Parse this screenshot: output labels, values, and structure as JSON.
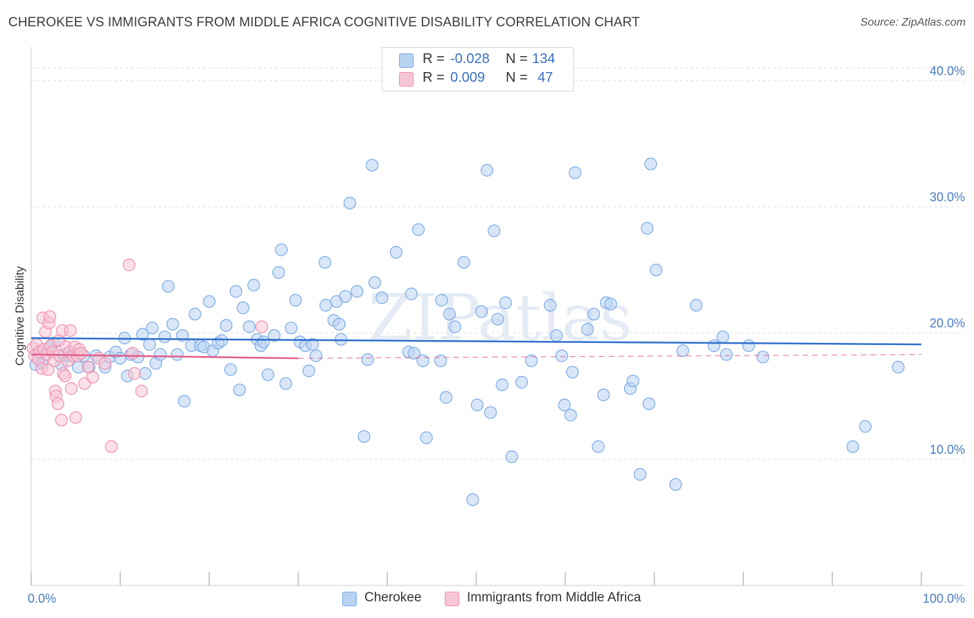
{
  "title": "CHEROKEE VS IMMIGRANTS FROM MIDDLE AFRICA COGNITIVE DISABILITY CORRELATION CHART",
  "source": "Source: ZipAtlas.com",
  "watermark": "ZIPatlas",
  "legend_top": {
    "rows": [
      {
        "r_label": "R =",
        "r_value": "-0.028",
        "n_label": "N =",
        "n_value": "134"
      },
      {
        "r_label": "R =",
        "r_value": "0.009",
        "n_label": "N =",
        "n_value": "47"
      }
    ]
  },
  "colors": {
    "blue": "#7aaae6",
    "blue_fill": "#b8d2f2",
    "blue_line": "#2f6fcc",
    "pink": "#f08fb0",
    "pink_fill": "#f7c6d6",
    "pink_line": "#e0608c",
    "grid": "#dddddd",
    "tick_text": "#4a7cc4"
  },
  "chart_data": {
    "type": "scatter",
    "title": "CHEROKEE VS IMMIGRANTS FROM MIDDLE AFRICA COGNITIVE DISABILITY CORRELATION CHART",
    "xlabel": "",
    "ylabel": "Cognitive Disability",
    "xlim": [
      0,
      100
    ],
    "ylim": [
      0,
      42
    ],
    "x_ticks": [
      {
        "value": 0,
        "label": "0.0%"
      },
      {
        "value": 100,
        "label": "100.0%"
      }
    ],
    "y_ticks": [
      {
        "value": 10,
        "label": "10.0%"
      },
      {
        "value": 20,
        "label": "20.0%"
      },
      {
        "value": 30,
        "label": "30.0%"
      },
      {
        "value": 40,
        "label": "40.0%"
      }
    ],
    "grid": "horizontal dashed",
    "legend": "bottom",
    "series": [
      {
        "name": "Cherokee",
        "color": "#7aaae6",
        "trend": {
          "x": [
            0,
            100
          ],
          "y": [
            19.6,
            19.1
          ],
          "style": "solid"
        },
        "points": [
          [
            0.5,
            17.5
          ],
          [
            0.8,
            18.4
          ],
          [
            1.2,
            17.6
          ],
          [
            1.6,
            18.3
          ],
          [
            2,
            18.8
          ],
          [
            2.5,
            19.2
          ],
          [
            3.4,
            17.5
          ],
          [
            3.8,
            18.3
          ],
          [
            4.3,
            18.2
          ],
          [
            4.8,
            18.4
          ],
          [
            5.3,
            17.3
          ],
          [
            5.9,
            18.2
          ],
          [
            6.5,
            17.3
          ],
          [
            7.3,
            18.2
          ],
          [
            8.3,
            17.3
          ],
          [
            8.8,
            18.1
          ],
          [
            9.5,
            18.5
          ],
          [
            10,
            18
          ],
          [
            10.5,
            19.6
          ],
          [
            10.8,
            16.6
          ],
          [
            11.2,
            18.3
          ],
          [
            12,
            18.1
          ],
          [
            12.5,
            19.9
          ],
          [
            12.8,
            16.8
          ],
          [
            13.3,
            19.1
          ],
          [
            13.6,
            20.4
          ],
          [
            14,
            17.6
          ],
          [
            14.5,
            18.3
          ],
          [
            15,
            19.7
          ],
          [
            15.4,
            23.7
          ],
          [
            15.9,
            20.7
          ],
          [
            16.4,
            18.3
          ],
          [
            17,
            19.8
          ],
          [
            17.2,
            14.6
          ],
          [
            18,
            19
          ],
          [
            18.4,
            21.5
          ],
          [
            19,
            19
          ],
          [
            19.4,
            18.9
          ],
          [
            20,
            22.5
          ],
          [
            20.4,
            18.6
          ],
          [
            21,
            19.2
          ],
          [
            21.4,
            19.4
          ],
          [
            21.9,
            20.6
          ],
          [
            22.4,
            17.1
          ],
          [
            23,
            23.3
          ],
          [
            23.4,
            15.5
          ],
          [
            23.8,
            22
          ],
          [
            24.5,
            20.5
          ],
          [
            25,
            23.8
          ],
          [
            25.4,
            19.5
          ],
          [
            25.8,
            19
          ],
          [
            26.1,
            19.3
          ],
          [
            26.6,
            16.7
          ],
          [
            27.3,
            19.8
          ],
          [
            27.8,
            24.8
          ],
          [
            28.1,
            26.6
          ],
          [
            28.6,
            16
          ],
          [
            29.2,
            20.4
          ],
          [
            29.7,
            22.6
          ],
          [
            30.2,
            19.3
          ],
          [
            30.8,
            19
          ],
          [
            31.2,
            17
          ],
          [
            31.6,
            19.1
          ],
          [
            32,
            18.2
          ],
          [
            33,
            25.6
          ],
          [
            33.1,
            22.2
          ],
          [
            34,
            21
          ],
          [
            34.3,
            22.5
          ],
          [
            34.6,
            20.7
          ],
          [
            34.8,
            19.5
          ],
          [
            35.3,
            22.9
          ],
          [
            35.8,
            30.3
          ],
          [
            36.6,
            23.3
          ],
          [
            37.4,
            11.8
          ],
          [
            37.8,
            17.9
          ],
          [
            38.3,
            33.3
          ],
          [
            38.6,
            24
          ],
          [
            39.4,
            22.8
          ],
          [
            41,
            26.4
          ],
          [
            42.4,
            18.5
          ],
          [
            42.7,
            23.1
          ],
          [
            43,
            18.4
          ],
          [
            43.5,
            28.2
          ],
          [
            44,
            17.8
          ],
          [
            44.4,
            11.7
          ],
          [
            46.1,
            22.6
          ],
          [
            46.6,
            14.9
          ],
          [
            47,
            21.5
          ],
          [
            47.6,
            20.5
          ],
          [
            48.6,
            25.6
          ],
          [
            49.6,
            6.8
          ],
          [
            50.1,
            14.3
          ],
          [
            50.6,
            21.7
          ],
          [
            51.2,
            32.9
          ],
          [
            51.6,
            13.7
          ],
          [
            52,
            28.1
          ],
          [
            52.4,
            21.1
          ],
          [
            52.9,
            15.9
          ],
          [
            53.3,
            22.4
          ],
          [
            54,
            10.2
          ],
          [
            55.1,
            16.1
          ],
          [
            56.2,
            17.8
          ],
          [
            58.3,
            22.2
          ],
          [
            59,
            19.8
          ],
          [
            59.6,
            18.2
          ],
          [
            59.9,
            14.3
          ],
          [
            60.6,
            13.5
          ],
          [
            60.8,
            16.9
          ],
          [
            61.1,
            32.7
          ],
          [
            62.5,
            20.3
          ],
          [
            63.2,
            21.5
          ],
          [
            63.7,
            11
          ],
          [
            64.3,
            15.1
          ],
          [
            64.6,
            22.4
          ],
          [
            65.1,
            22.3
          ],
          [
            67.3,
            15.6
          ],
          [
            67.6,
            16.2
          ],
          [
            68.4,
            8.8
          ],
          [
            69.2,
            28.3
          ],
          [
            69.4,
            14.4
          ],
          [
            69.6,
            33.4
          ],
          [
            70.2,
            25
          ],
          [
            72.4,
            8
          ],
          [
            73.2,
            18.6
          ],
          [
            74.7,
            22.2
          ],
          [
            76.7,
            19
          ],
          [
            77.7,
            19.7
          ],
          [
            78.1,
            18.3
          ],
          [
            80.6,
            19
          ],
          [
            82.2,
            18.1
          ],
          [
            92.3,
            11
          ],
          [
            93.7,
            12.6
          ],
          [
            97.4,
            17.3
          ],
          [
            46,
            17.8
          ]
        ]
      },
      {
        "name": "Immigrants from Middle Africa",
        "color": "#f08fb0",
        "trend": {
          "x": [
            0,
            30
          ],
          "y": [
            18.3,
            18.0
          ],
          "style": "solid",
          "extension": {
            "x": [
              30,
              100
            ],
            "y": [
              18.0,
              18.3
            ],
            "style": "dashed"
          }
        },
        "points": [
          [
            0.2,
            18.8
          ],
          [
            0.4,
            18.2
          ],
          [
            0.6,
            19.1
          ],
          [
            0.8,
            17.9
          ],
          [
            1,
            18.5
          ],
          [
            1.2,
            17.2
          ],
          [
            1.3,
            21.2
          ],
          [
            1.4,
            18.7
          ],
          [
            1.6,
            20.1
          ],
          [
            1.8,
            18.3
          ],
          [
            1.9,
            17.1
          ],
          [
            2,
            20.8
          ],
          [
            2.1,
            21.3
          ],
          [
            2.2,
            19
          ],
          [
            2.4,
            18.5
          ],
          [
            2.6,
            17.8
          ],
          [
            2.7,
            15.4
          ],
          [
            2.8,
            15
          ],
          [
            3,
            14.4
          ],
          [
            3.1,
            19.4
          ],
          [
            3.2,
            18.2
          ],
          [
            3.4,
            13.1
          ],
          [
            3.5,
            20.2
          ],
          [
            3.6,
            16.8
          ],
          [
            3.8,
            16.6
          ],
          [
            3.9,
            18.9
          ],
          [
            4.1,
            17.8
          ],
          [
            4.3,
            18.5
          ],
          [
            4.4,
            20.2
          ],
          [
            4.5,
            15.6
          ],
          [
            4.7,
            18.2
          ],
          [
            4.9,
            18.9
          ],
          [
            5,
            13.3
          ],
          [
            5.2,
            18.2
          ],
          [
            5.4,
            18.7
          ],
          [
            5.6,
            18.4
          ],
          [
            6,
            16
          ],
          [
            6.4,
            17.3
          ],
          [
            6.9,
            16.5
          ],
          [
            7.6,
            18
          ],
          [
            8.3,
            17.6
          ],
          [
            9,
            11
          ],
          [
            11,
            25.4
          ],
          [
            11.4,
            18.4
          ],
          [
            11.6,
            16.8
          ],
          [
            12.4,
            15.4
          ],
          [
            25.9,
            20.5
          ]
        ]
      }
    ]
  },
  "legend_bottom": {
    "items": [
      {
        "label": "Cherokee"
      },
      {
        "label": "Immigrants from Middle Africa"
      }
    ]
  }
}
